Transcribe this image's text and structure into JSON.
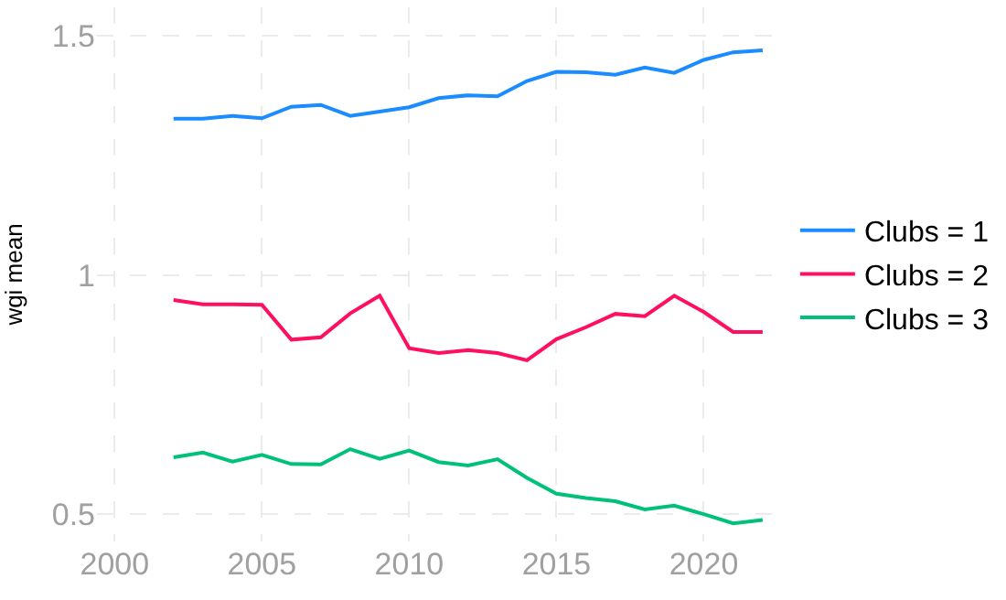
{
  "chart_data": {
    "type": "line",
    "ylabel": "wgi mean",
    "x": [
      2002,
      2003,
      2004,
      2005,
      2006,
      2007,
      2008,
      2009,
      2010,
      2011,
      2012,
      2013,
      2014,
      2015,
      2016,
      2017,
      2018,
      2019,
      2020,
      2021,
      2022
    ],
    "series": [
      {
        "name": "Clubs = 1",
        "color": "#1a8cff",
        "values": [
          1.327,
          1.327,
          1.333,
          1.328,
          1.352,
          1.356,
          1.333,
          1.342,
          1.351,
          1.37,
          1.376,
          1.374,
          1.406,
          1.425,
          1.424,
          1.419,
          1.434,
          1.423,
          1.45,
          1.466,
          1.47
        ]
      },
      {
        "name": "Clubs = 2",
        "color": "#ff0f5f",
        "values": [
          0.948,
          0.939,
          0.939,
          0.938,
          0.865,
          0.87,
          0.92,
          0.957,
          0.847,
          0.837,
          0.843,
          0.837,
          0.822,
          0.866,
          0.891,
          0.919,
          0.914,
          0.957,
          0.923,
          0.881,
          0.881
        ]
      },
      {
        "name": "Clubs = 3",
        "color": "#00c07a",
        "values": [
          0.619,
          0.629,
          0.61,
          0.624,
          0.605,
          0.604,
          0.636,
          0.616,
          0.633,
          0.609,
          0.602,
          0.615,
          0.576,
          0.543,
          0.534,
          0.527,
          0.51,
          0.518,
          0.5,
          0.481,
          0.488
        ]
      }
    ],
    "xlim": [
      1999.4,
      2022.5
    ],
    "ylim": [
      0.443,
      1.56
    ],
    "xticks": [
      2000,
      2005,
      2010,
      2015,
      2020
    ],
    "yticks": [
      0.5,
      1,
      {
        "value": 1.5,
        "label": "1.5"
      }
    ],
    "grid": true,
    "legend": "right",
    "marker": "none",
    "line_style": "solid"
  }
}
